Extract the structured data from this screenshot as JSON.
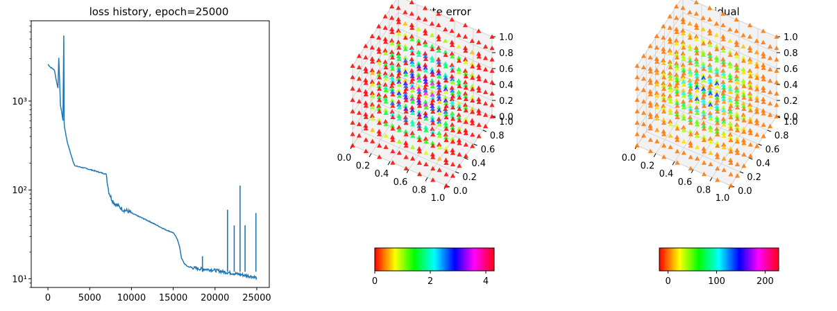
{
  "chart_data": [
    {
      "type": "line",
      "title": "loss history, epoch=25000",
      "xlabel": "",
      "ylabel": "",
      "yscale": "log",
      "xlim": [
        -2000,
        26500
      ],
      "ylim": [
        8,
        8000
      ],
      "xticks": [
        0,
        5000,
        10000,
        15000,
        20000,
        25000
      ],
      "xtick_labels": [
        "0",
        "5000",
        "10000",
        "15000",
        "20000",
        "25000"
      ],
      "yticks": [
        10,
        100,
        1000
      ],
      "ytick_labels": [
        "10¹",
        "10²",
        "10³"
      ],
      "grid": false,
      "series": [
        {
          "color": "#1f77b4",
          "x": [
            0,
            300,
            600,
            800,
            1000,
            1200,
            1300,
            1500,
            1700,
            1800,
            1900,
            1950,
            2000,
            2100,
            2300,
            2600,
            3000,
            3200,
            3400,
            4000,
            5000,
            6000,
            7000,
            7100,
            7300,
            7600,
            8000,
            8500,
            9000,
            9500,
            10000,
            12000,
            14000,
            15000,
            15500,
            15800,
            16000,
            16300,
            16600,
            17000,
            18000,
            19000,
            20000,
            21000,
            22000,
            23000,
            24000,
            25000
          ],
          "y": [
            2600,
            2400,
            2300,
            2200,
            1700,
            1400,
            3100,
            900,
            700,
            600,
            5500,
            550,
            500,
            450,
            350,
            280,
            210,
            190,
            185,
            180,
            170,
            160,
            150,
            120,
            95,
            80,
            70,
            65,
            60,
            58,
            55,
            45,
            36,
            33,
            28,
            22,
            17,
            15,
            14,
            13.5,
            13,
            12.8,
            12.5,
            12,
            11.6,
            11.2,
            10.8,
            10.3
          ]
        }
      ],
      "spikes": [
        {
          "x": 18500,
          "y": 18
        },
        {
          "x": 21500,
          "y": 60
        },
        {
          "x": 22300,
          "y": 40
        },
        {
          "x": 23000,
          "y": 112
        },
        {
          "x": 23600,
          "y": 40
        },
        {
          "x": 24900,
          "y": 55
        }
      ]
    },
    {
      "type": "scatter",
      "title": "absolute error",
      "axes_3d": {
        "xlim": [
          0,
          1
        ],
        "ylim": [
          0,
          1
        ],
        "zlim": [
          0,
          1
        ],
        "xticks": [
          "0.0",
          "0.2",
          "0.4",
          "0.6",
          "0.8",
          "1.0"
        ],
        "yticks": [
          "0.0",
          "0.2",
          "0.4",
          "0.6",
          "0.8",
          "1.0"
        ],
        "zticks": [
          "0.0",
          "0.2",
          "0.4",
          "0.6",
          "0.8",
          "1.0"
        ]
      },
      "marker": "triangle",
      "colormap": "hsv",
      "colorbar": {
        "range": [
          0,
          4.3
        ],
        "ticks": [
          0,
          2,
          4
        ],
        "tick_labels": [
          "0",
          "2",
          "4"
        ]
      }
    },
    {
      "type": "scatter",
      "title": "residual",
      "axes_3d": {
        "xlim": [
          0,
          1
        ],
        "ylim": [
          0,
          1
        ],
        "zlim": [
          0,
          1
        ],
        "xticks": [
          "0.0",
          "0.2",
          "0.4",
          "0.6",
          "0.8",
          "1.0"
        ],
        "yticks": [
          "0.0",
          "0.2",
          "0.4",
          "0.6",
          "0.8",
          "1.0"
        ],
        "zticks": [
          "0.0",
          "0.2",
          "0.4",
          "0.6",
          "0.8",
          "1.0"
        ]
      },
      "marker": "triangle",
      "colormap": "hsv",
      "colorbar": {
        "range": [
          -18,
          228
        ],
        "ticks": [
          0,
          100,
          200
        ],
        "tick_labels": [
          "0",
          "100",
          "200"
        ]
      }
    }
  ]
}
